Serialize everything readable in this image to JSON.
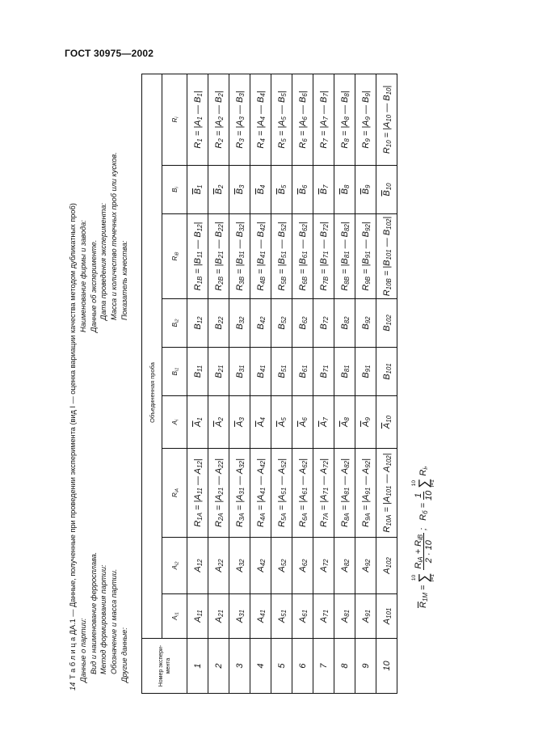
{
  "header": {
    "doc_code": "ГОСТ 30975—2002"
  },
  "page_number": "14",
  "caption": {
    "title": "Т а б л и ц а  ДА.1 — Данные, полученные при проведении эксперимента (вид I — оценка вариации качества методом дубликатных проб)",
    "batch_heading": "Данные о партии:",
    "batch_lines": [
      "Вид и наименование ферросплава.",
      "Метод формирования партии:",
      "Обозначение и масса партии."
    ],
    "other_data": "Другие данные:",
    "firm": "Наименование фирмы и завода:",
    "experiment_heading": "Данные об эксперименте.",
    "experiment_lines": [
      "Дата проведения эксперимента:",
      "Масса и количество точечных проб или кусков.",
      "Показатель качества:"
    ]
  },
  "table": {
    "num_header": "Номер экспери-мента",
    "group_header": "Объединенная проба",
    "columns": [
      "A_{i1}",
      "A_{i2}",
      "R_{iA}",
      "A_{i}",
      "B_{i1}",
      "B_{i2}",
      "R_{iB}",
      "B_{i}",
      "R_{i}"
    ],
    "rows": [
      [
        "1",
        "A_{11}",
        "A_{12}",
        "R_{1A} = |A_{11} — A_{12}|",
        "~A_{1}",
        "B_{11}",
        "B_{12}",
        "R_{1B} = |B_{11} — B_{12}|",
        "~B_{1}",
        "R_{1} = |A_{1} — B_{1}|"
      ],
      [
        "2",
        "A_{21}",
        "A_{22}",
        "R_{2A} = |A_{21} — A_{22}|",
        "~A_{2}",
        "B_{21}",
        "B_{22}",
        "R_{2B} = |B_{21} — B_{22}|",
        "~B_{2}",
        "R_{2} = |A_{2} — B_{2}|"
      ],
      [
        "3",
        "A_{31}",
        "A_{32}",
        "R_{3A} = |A_{31} — A_{32}|",
        "~A_{3}",
        "B_{31}",
        "B_{32}",
        "R_{3B} = |B_{31} — B_{32}|",
        "~B_{3}",
        "R_{3} = |A_{3} — B_{3}|"
      ],
      [
        "4",
        "A_{41}",
        "A_{42}",
        "R_{4A} = |A_{41} — A_{42}|",
        "~A_{4}",
        "B_{41}",
        "B_{42}",
        "R_{4B} = |B_{41} — B_{42}|",
        "~B_{4}",
        "R_{4} = |A_{4} — B_{4}|"
      ],
      [
        "5",
        "A_{51}",
        "A_{52}",
        "R_{5A} = |A_{51} — A_{52}|",
        "~A_{5}",
        "B_{51}",
        "B_{52}",
        "R_{5B} = |B_{51} — B_{52}|",
        "~B_{5}",
        "R_{5} = |A_{5} — B_{5}|"
      ],
      [
        "6",
        "A_{61}",
        "A_{62}",
        "R_{6A} = |A_{61} — A_{62}|",
        "~A_{6}",
        "B_{61}",
        "B_{62}",
        "R_{6B} = |B_{61} — B_{62}|",
        "~B_{6}",
        "R_{6} = |A_{6} — B_{6}|"
      ],
      [
        "7",
        "A_{71}",
        "A_{72}",
        "R_{7A} = |A_{71} — A_{72}|",
        "~A_{7}",
        "B_{71}",
        "B_{72}",
        "R_{7B} = |B_{71} — B_{72}|",
        "~B_{7}",
        "R_{7} = |A_{7} — B_{7}|"
      ],
      [
        "8",
        "A_{81}",
        "A_{82}",
        "R_{8A} = |A_{81} — A_{82}|",
        "~A_{8}",
        "B_{81}",
        "B_{82}",
        "R_{8B} = |B_{81} — B_{82}|",
        "~B_{8}",
        "R_{8} = |A_{8} — B_{8}|"
      ],
      [
        "9",
        "A_{91}",
        "A_{92}",
        "R_{9A} = |A_{91} — A_{92}|",
        "~A_{9}",
        "B_{91}",
        "B_{92}",
        "R_{9B} = |B_{91} — B_{92}|",
        "~B_{9}",
        "R_{9} = |A_{9} — B_{9}|"
      ],
      [
        "10",
        "A_{101}",
        "A_{102}",
        "R_{10A} = |A_{101} — A_{102}|",
        "~A_{10}",
        "B_{101}",
        "B_{102}",
        "R_{10B} = |B_{101} — B_{102}|",
        "~B_{10}",
        "R_{10} = |A_{10} — B_{10}|"
      ]
    ]
  },
  "formula": {
    "lhs1": "~R_{1M} =",
    "sum_upper": "10",
    "sum_lower": "i=1",
    "frac1_num": "R_{iA} + R_{iB}",
    "frac1_den": "2 · 10",
    "sep": ";",
    "lhs2": "R_{б} =",
    "frac2_num": "1",
    "frac2_den": "10",
    "tail": "R_{i},"
  }
}
